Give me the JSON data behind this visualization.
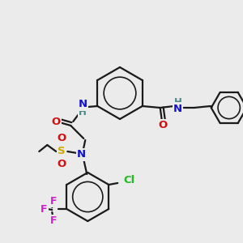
{
  "bg_color": "#ebebeb",
  "bond_color": "#1a1a1a",
  "bond_width": 1.6,
  "atoms": {
    "N": {
      "color": "#1111cc"
    },
    "O": {
      "color": "#cc1111"
    },
    "S": {
      "color": "#ccaa00"
    },
    "Cl": {
      "color": "#22bb22"
    },
    "F": {
      "color": "#cc22cc"
    },
    "H": {
      "color": "#448888"
    }
  },
  "font_size": 9.5,
  "font_size_small": 8.5
}
